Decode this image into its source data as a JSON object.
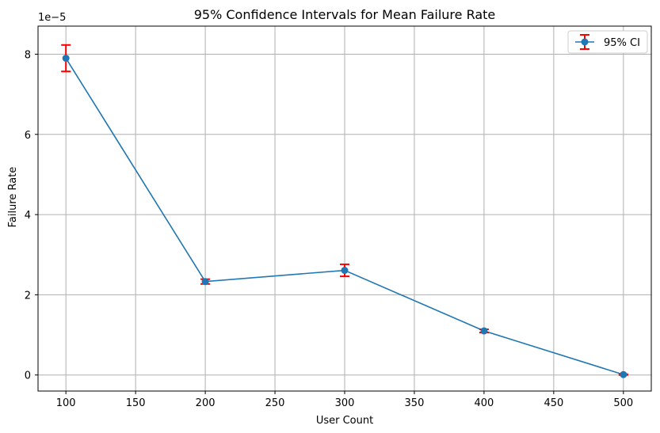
{
  "chart_data": {
    "type": "line",
    "title": "95% Confidence Intervals for Mean Failure Rate",
    "xlabel": "User Count",
    "ylabel": "Failure Rate",
    "y_scale_label": "1e−5",
    "xlim": [
      80,
      520
    ],
    "ylim": [
      -0.4,
      8.7
    ],
    "x_ticks": [
      100,
      150,
      200,
      250,
      300,
      350,
      400,
      450,
      500
    ],
    "y_ticks": [
      0,
      2,
      4,
      6,
      8
    ],
    "grid": true,
    "legend": "top-right",
    "series": [
      {
        "name": "95% CI",
        "color": "#1f77b4",
        "error_color": "#ff0000",
        "x": [
          100,
          200,
          300,
          400,
          500
        ],
        "y": [
          7.9,
          2.33,
          2.61,
          1.1,
          0.01
        ],
        "yerr": [
          0.33,
          0.06,
          0.15,
          0.04,
          0.01
        ]
      }
    ]
  }
}
